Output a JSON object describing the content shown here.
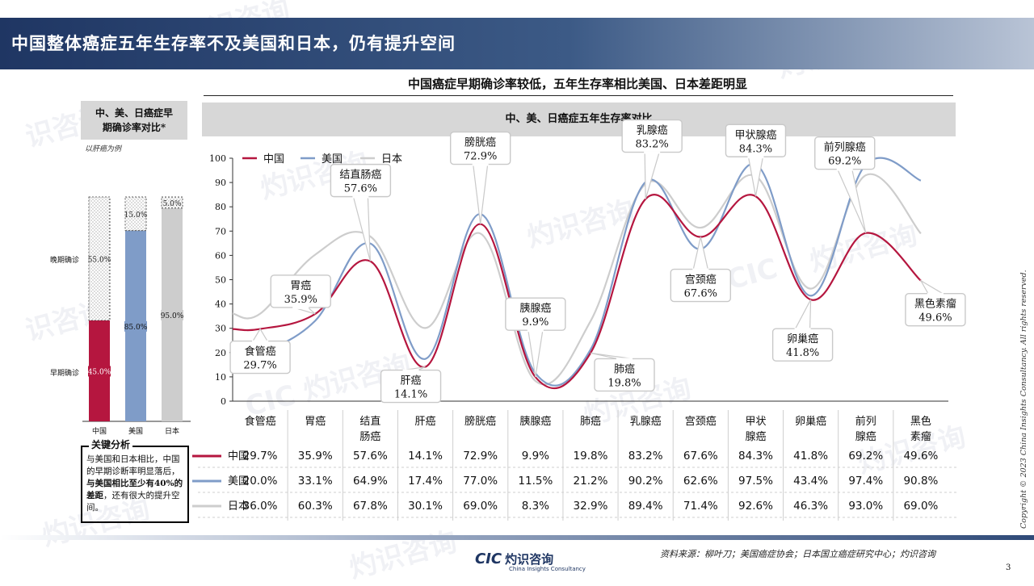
{
  "header": {
    "title": "中国整体癌症五年生存率不及美国和日本，仍有提升空间"
  },
  "subtitle": "中国癌症早期确诊率较低，五年生存率相比美国、日本差距明显",
  "left_panel": {
    "title_line1": "中、美、日癌症早",
    "title_line2": "期确诊率对比*",
    "note": "以肝癌为例",
    "late_label": "晚期确诊",
    "early_label": "早期确诊"
  },
  "chart_header": "中、美、日癌症五年生存率对比",
  "key_analysis": {
    "title": "关键分析",
    "text_1": "与美国和日本相比，中国的早期诊断率明显落后，",
    "text_bold": "与美国相比至少有40%的差距",
    "text_2": "，还有很大的提升空间。"
  },
  "footer": {
    "source": "资料来源：柳叶刀；美国癌症协会；日本国立癌症研究中心；灼识咨询",
    "page": "3",
    "copyright": "Copyright © 2023 China Insights Consultancy. All rights reserved.",
    "logo_mark": "CIC",
    "logo_cn": "灼识咨询",
    "logo_en": "China Insights Consultancy"
  },
  "colors": {
    "china": "#b5163f",
    "usa": "#7f9cc8",
    "japan": "#cdcdcd",
    "header_dark": "#1f3663"
  },
  "chart_data": [
    {
      "type": "bar",
      "stacked": true,
      "categories": [
        "中国",
        "美国",
        "日本"
      ],
      "series": [
        {
          "name": "早期确诊",
          "values": [
            45.0,
            85.0,
            95.0
          ],
          "labels": [
            "45.0%",
            "85.0%",
            "95.0%"
          ]
        },
        {
          "name": "晚期确诊",
          "values": [
            55.0,
            15.0,
            5.0
          ],
          "labels": [
            "55.0%",
            "15.0%",
            "5.0%"
          ]
        }
      ]
    },
    {
      "type": "line",
      "title": "中、美、日癌症五年生存率对比",
      "ylim": [
        0,
        100
      ],
      "yticks": [
        0,
        10,
        20,
        30,
        40,
        50,
        60,
        70,
        80,
        90,
        100
      ],
      "legend": "top-left",
      "categories": [
        "食管癌",
        "胃癌",
        "结直肠癌",
        "肝癌",
        "膀胱癌",
        "胰腺癌",
        "肺癌",
        "乳腺癌",
        "宫颈癌",
        "甲状腺癌",
        "卵巢癌",
        "前列腺癌",
        "黑色素瘤"
      ],
      "table_headers": [
        [
          "食管癌"
        ],
        [
          "胃癌"
        ],
        [
          "结直",
          "肠癌"
        ],
        [
          "肝癌"
        ],
        [
          "膀胱癌"
        ],
        [
          "胰腺癌"
        ],
        [
          "肺癌"
        ],
        [
          "乳腺癌"
        ],
        [
          "宫颈癌"
        ],
        [
          "甲状",
          "腺癌"
        ],
        [
          "卵巢癌"
        ],
        [
          "前列",
          "腺癌"
        ],
        [
          "黑色",
          "素瘤"
        ]
      ],
      "series": [
        {
          "name": "中国",
          "values": [
            29.7,
            35.9,
            57.6,
            14.1,
            72.9,
            9.9,
            19.8,
            83.2,
            67.6,
            84.3,
            41.8,
            69.2,
            49.6
          ],
          "labels": [
            "29.7%",
            "35.9%",
            "57.6%",
            "14.1%",
            "72.9%",
            "9.9%",
            "19.8%",
            "83.2%",
            "67.6%",
            "84.3%",
            "41.8%",
            "69.2%",
            "49.6%"
          ]
        },
        {
          "name": "美国",
          "values": [
            20.0,
            33.1,
            64.9,
            17.4,
            77.0,
            11.5,
            21.2,
            90.2,
            62.6,
            97.5,
            43.4,
            97.4,
            90.8
          ],
          "labels": [
            "20.0%",
            "33.1%",
            "64.9%",
            "17.4%",
            "77.0%",
            "11.5%",
            "21.2%",
            "90.2%",
            "62.6%",
            "97.5%",
            "43.4%",
            "97.4%",
            "90.8%"
          ]
        },
        {
          "name": "日本",
          "values": [
            36.0,
            60.3,
            67.8,
            30.1,
            69.0,
            8.3,
            32.9,
            89.4,
            71.4,
            92.6,
            46.3,
            93.0,
            69.0
          ],
          "labels": [
            "36.0%",
            "60.3%",
            "67.8%",
            "30.1%",
            "69.0%",
            "8.3%",
            "32.9%",
            "89.4%",
            "71.4%",
            "92.6%",
            "46.3%",
            "93.0%",
            "69.0%"
          ]
        }
      ]
    }
  ]
}
